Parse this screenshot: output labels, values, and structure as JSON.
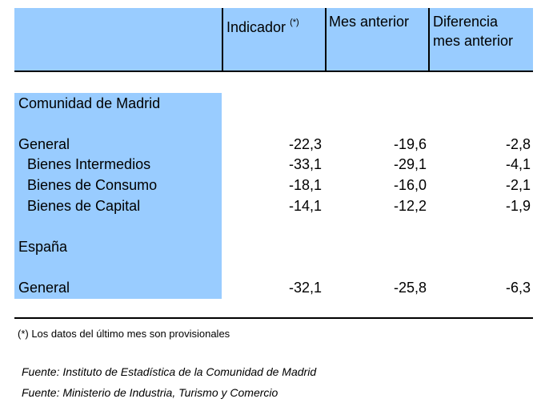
{
  "header": {
    "indicador": "Indicador",
    "indicador_note": "(*)",
    "mes_anterior": "Mes anterior",
    "diferencia_line1": "Diferencia",
    "diferencia_line2": "mes anterior"
  },
  "sections": [
    {
      "title": "Comunidad de Madrid",
      "rows": [
        {
          "label": "General",
          "indicador": "-22,3",
          "mes_anterior": "-19,6",
          "diferencia": "-2,8"
        },
        {
          "label": "Bienes Intermedios",
          "indicador": "-33,1",
          "mes_anterior": "-29,1",
          "diferencia": "-4,1"
        },
        {
          "label": "Bienes de Consumo",
          "indicador": "-18,1",
          "mes_anterior": "-16,0",
          "diferencia": "-2,1"
        },
        {
          "label": "Bienes de Capital",
          "indicador": "-14,1",
          "mes_anterior": "-12,2",
          "diferencia": "-1,9"
        }
      ]
    },
    {
      "title": "España",
      "rows": [
        {
          "label": "General",
          "indicador": "-32,1",
          "mes_anterior": "-25,8",
          "diferencia": "-6,3"
        }
      ]
    }
  ],
  "footnote": "(*) Los datos del último mes son provisionales",
  "sources": [
    "Fuente: Instituto de Estadística de la Comunidad de Madrid",
    "Fuente: Ministerio de Industria, Turismo y Comercio"
  ],
  "colors": {
    "header_fill": "#99ccff",
    "rule": "#000000"
  }
}
